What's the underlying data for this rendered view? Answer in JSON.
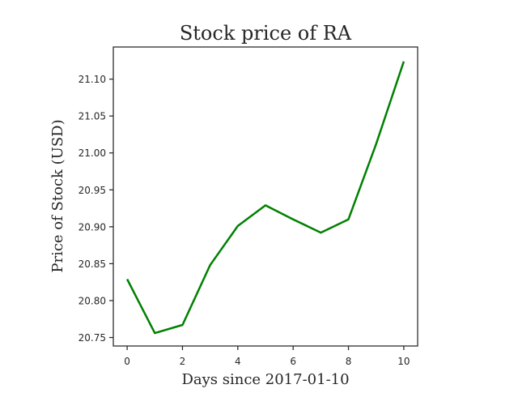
{
  "chart_data": {
    "type": "line",
    "title": "Stock price of RA",
    "xlabel": "Days since 2017-01-10",
    "ylabel": "Price of Stock (USD)",
    "xlim": [
      -0.5,
      10.5
    ],
    "ylim": [
      20.7385,
      21.1435
    ],
    "xticks": [
      0,
      2,
      4,
      6,
      8,
      10
    ],
    "yticks": [
      20.75,
      20.8,
      20.85,
      20.9,
      20.95,
      21.0,
      21.05,
      21.1
    ],
    "ytick_labels": [
      "20.75",
      "20.80",
      "20.85",
      "20.90",
      "20.95",
      "21.00",
      "21.05",
      "21.10"
    ],
    "grid": false,
    "series": [
      {
        "color": "#008000",
        "x": [
          0,
          1,
          2,
          3,
          4,
          5,
          6,
          7,
          8,
          9,
          10
        ],
        "y": [
          20.829,
          20.756,
          20.767,
          20.848,
          20.901,
          20.929,
          20.91,
          20.892,
          20.91,
          21.012,
          21.124
        ]
      }
    ]
  }
}
